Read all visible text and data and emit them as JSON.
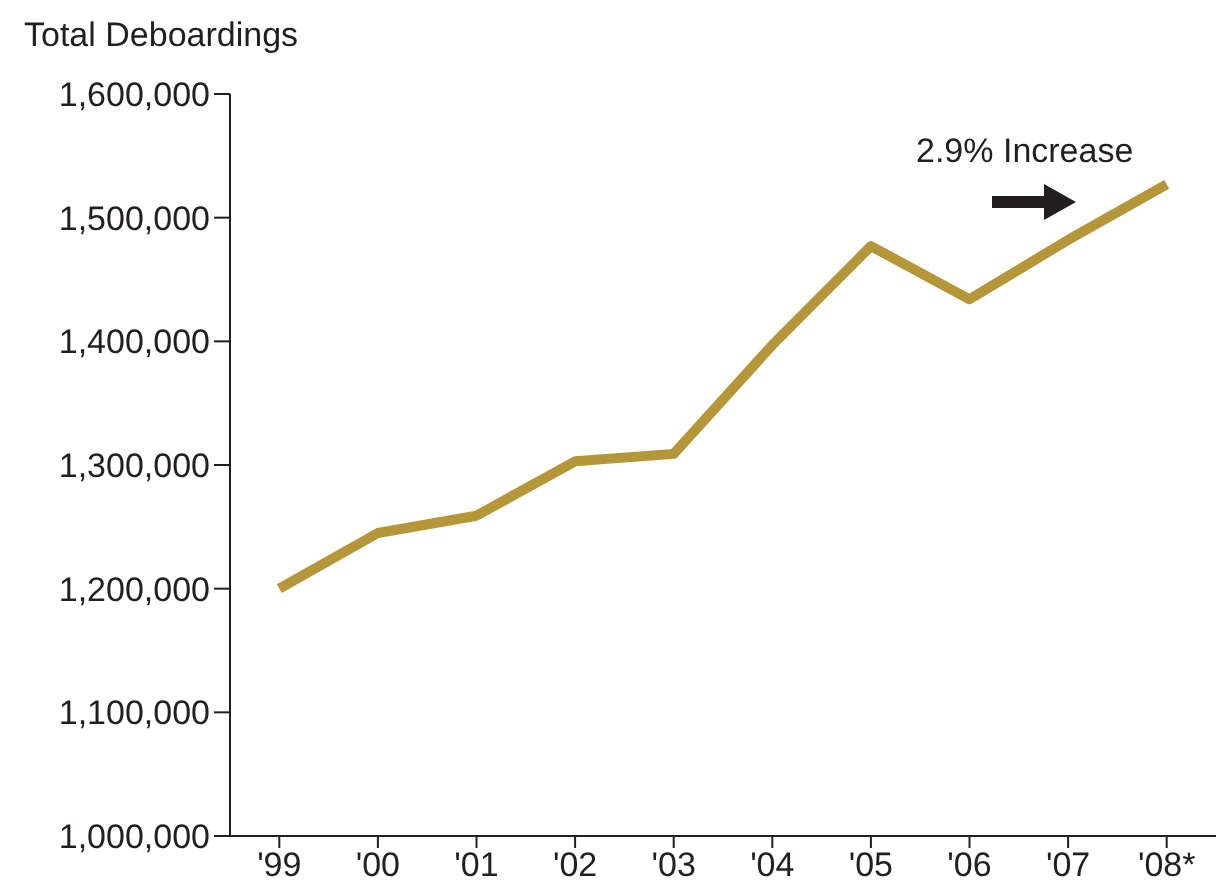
{
  "chart_data": {
    "type": "line",
    "ylabel": "Total Deboardings",
    "categories": [
      "'99",
      "'00",
      "'01",
      "'02",
      "'03",
      "'04",
      "'05",
      "'06",
      "'07",
      "'08*"
    ],
    "series": [
      {
        "color": "#b5973a",
        "values": [
          1200000,
          1245000,
          1259000,
          1303000,
          1309000,
          1397000,
          1477000,
          1434000,
          1482000,
          1527000
        ]
      }
    ],
    "ylim": [
      1000000,
      1600000
    ],
    "yticks": [
      {
        "value": 1000000,
        "label": "1,000,000"
      },
      {
        "value": 1100000,
        "label": "1,100,000"
      },
      {
        "value": 1200000,
        "label": "1,200,000"
      },
      {
        "value": 1300000,
        "label": "1,300,000"
      },
      {
        "value": 1400000,
        "label": "1,400,000"
      },
      {
        "value": 1500000,
        "label": "1,500,000"
      },
      {
        "value": 1600000,
        "label": "1,600,000"
      }
    ],
    "annotations": [
      "2.9% Increase"
    ],
    "grid": false,
    "legend": false,
    "marker": "none",
    "line_style": "solid"
  }
}
